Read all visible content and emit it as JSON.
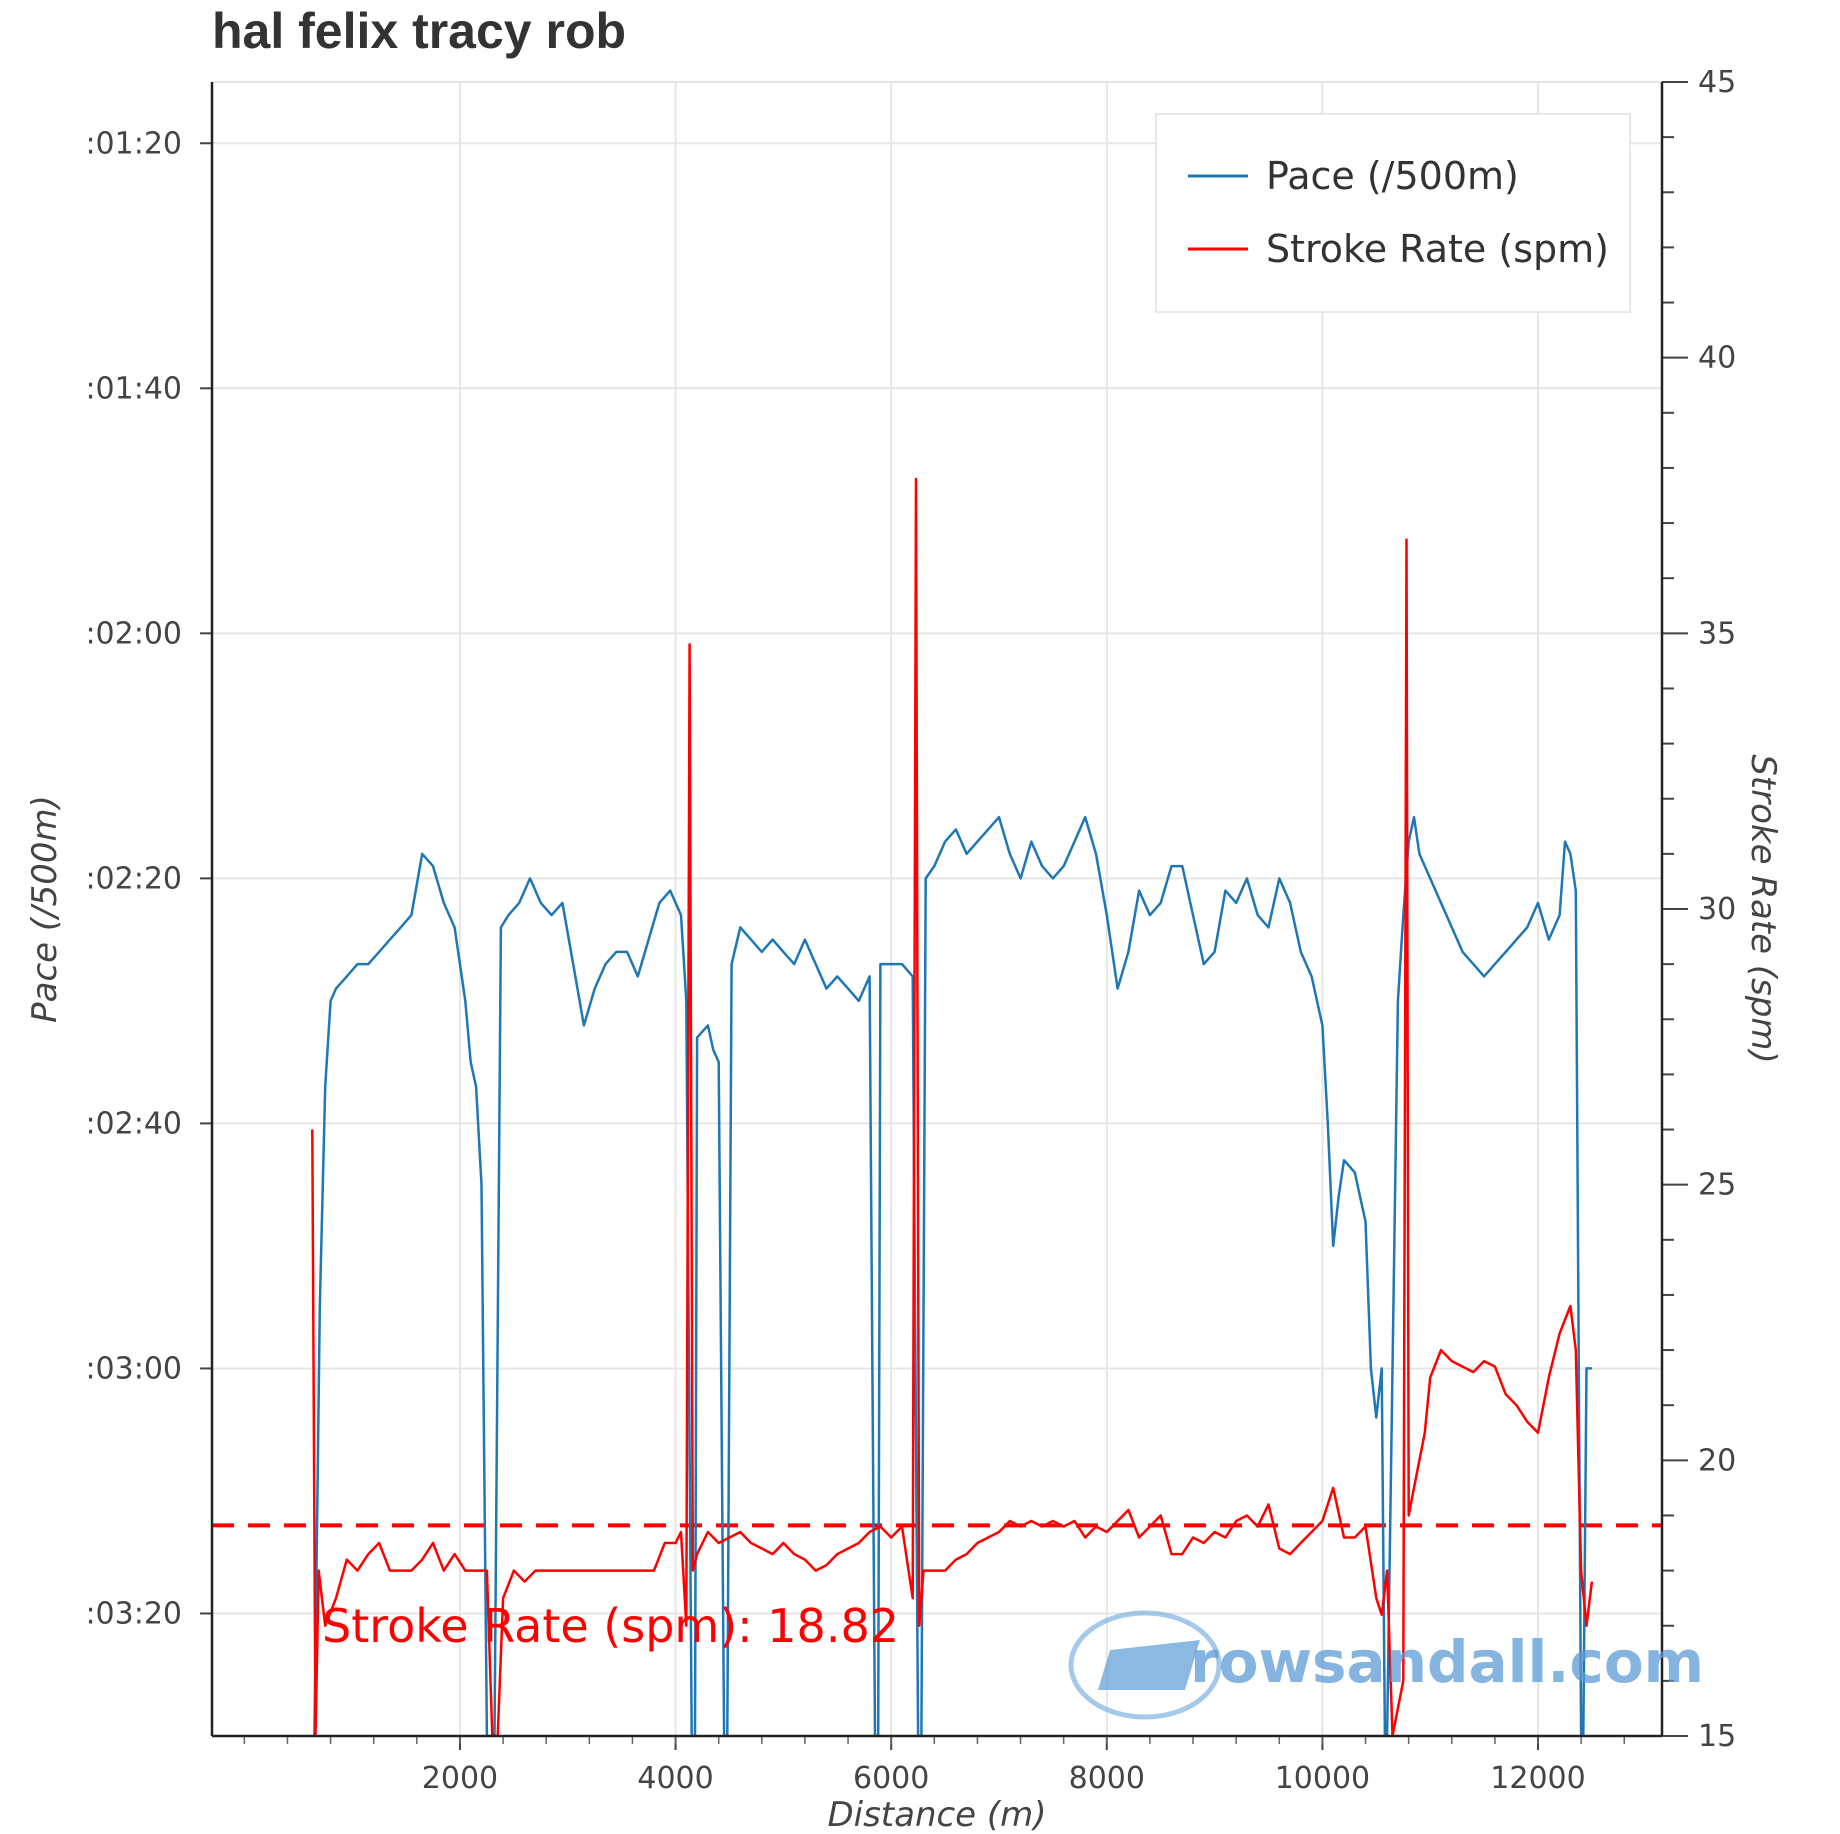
{
  "chart_data": {
    "type": "line",
    "title": "hal felix tracy rob",
    "xlabel": "Distance (m)",
    "ylabel": "Pace (/500m)",
    "ylabel_right": "Stroke Rate (spm)",
    "xlim": [
      -300,
      13150
    ],
    "x_ticks": [
      2000,
      4000,
      6000,
      8000,
      10000,
      12000
    ],
    "y_left_ticks_sec": [
      80,
      100,
      120,
      140,
      160,
      180,
      200
    ],
    "y_left_tick_labels": [
      ":01:20",
      ":01:40",
      ":02:00",
      ":02:20",
      ":02:40",
      ":03:00",
      ":03:20"
    ],
    "y_left_range_sec": [
      75,
      210
    ],
    "y_left_inverted": true,
    "y_right_ticks": [
      15,
      20,
      25,
      30,
      35,
      40,
      45
    ],
    "y_right_range": [
      15,
      45
    ],
    "grid": true,
    "legend_position": "top-right",
    "series": [
      {
        "name": "Pace (/500m)",
        "color": "#1f77b4",
        "axis": "left",
        "unit": "seconds per 500m",
        "points": [
          [
            650,
            210
          ],
          [
            700,
            175
          ],
          [
            750,
            157
          ],
          [
            800,
            150
          ],
          [
            850,
            149
          ],
          [
            950,
            148
          ],
          [
            1050,
            147
          ],
          [
            1150,
            147
          ],
          [
            1250,
            146
          ],
          [
            1350,
            145
          ],
          [
            1450,
            144
          ],
          [
            1550,
            143
          ],
          [
            1650,
            138
          ],
          [
            1750,
            139
          ],
          [
            1850,
            142
          ],
          [
            1950,
            144
          ],
          [
            2050,
            150
          ],
          [
            2100,
            155
          ],
          [
            2150,
            157
          ],
          [
            2200,
            165
          ],
          [
            2250,
            210
          ],
          [
            2320,
            210
          ],
          [
            2380,
            144
          ],
          [
            2450,
            143
          ],
          [
            2550,
            142
          ],
          [
            2650,
            140
          ],
          [
            2750,
            142
          ],
          [
            2850,
            143
          ],
          [
            2950,
            142
          ],
          [
            3050,
            147
          ],
          [
            3150,
            152
          ],
          [
            3250,
            149
          ],
          [
            3350,
            147
          ],
          [
            3450,
            146
          ],
          [
            3550,
            146
          ],
          [
            3650,
            148
          ],
          [
            3750,
            145
          ],
          [
            3850,
            142
          ],
          [
            3950,
            141
          ],
          [
            4050,
            143
          ],
          [
            4100,
            150
          ],
          [
            4150,
            210
          ],
          [
            4180,
            210
          ],
          [
            4200,
            153
          ],
          [
            4300,
            152
          ],
          [
            4350,
            154
          ],
          [
            4400,
            155
          ],
          [
            4450,
            210
          ],
          [
            4480,
            210
          ],
          [
            4520,
            147
          ],
          [
            4600,
            144
          ],
          [
            4700,
            145
          ],
          [
            4800,
            146
          ],
          [
            4900,
            145
          ],
          [
            5000,
            146
          ],
          [
            5100,
            147
          ],
          [
            5200,
            145
          ],
          [
            5300,
            147
          ],
          [
            5400,
            149
          ],
          [
            5500,
            148
          ],
          [
            5600,
            149
          ],
          [
            5700,
            150
          ],
          [
            5800,
            148
          ],
          [
            5850,
            210
          ],
          [
            5880,
            210
          ],
          [
            5900,
            147
          ],
          [
            6000,
            147
          ],
          [
            6100,
            147
          ],
          [
            6200,
            148
          ],
          [
            6250,
            210
          ],
          [
            6280,
            210
          ],
          [
            6320,
            140
          ],
          [
            6400,
            139
          ],
          [
            6500,
            137
          ],
          [
            6600,
            136
          ],
          [
            6700,
            138
          ],
          [
            6800,
            137
          ],
          [
            6900,
            136
          ],
          [
            7000,
            135
          ],
          [
            7100,
            138
          ],
          [
            7200,
            140
          ],
          [
            7300,
            137
          ],
          [
            7400,
            139
          ],
          [
            7500,
            140
          ],
          [
            7600,
            139
          ],
          [
            7700,
            137
          ],
          [
            7800,
            135
          ],
          [
            7900,
            138
          ],
          [
            8000,
            143
          ],
          [
            8100,
            149
          ],
          [
            8200,
            146
          ],
          [
            8300,
            141
          ],
          [
            8400,
            143
          ],
          [
            8500,
            142
          ],
          [
            8600,
            139
          ],
          [
            8700,
            139
          ],
          [
            8800,
            143
          ],
          [
            8900,
            147
          ],
          [
            9000,
            146
          ],
          [
            9100,
            141
          ],
          [
            9200,
            142
          ],
          [
            9300,
            140
          ],
          [
            9400,
            143
          ],
          [
            9500,
            144
          ],
          [
            9600,
            140
          ],
          [
            9700,
            142
          ],
          [
            9800,
            146
          ],
          [
            9900,
            148
          ],
          [
            10000,
            152
          ],
          [
            10050,
            160
          ],
          [
            10100,
            170
          ],
          [
            10150,
            166
          ],
          [
            10200,
            163
          ],
          [
            10300,
            164
          ],
          [
            10350,
            166
          ],
          [
            10400,
            168
          ],
          [
            10450,
            180
          ],
          [
            10500,
            184
          ],
          [
            10550,
            180
          ],
          [
            10580,
            210
          ],
          [
            10600,
            210
          ],
          [
            10700,
            150
          ],
          [
            10750,
            143
          ],
          [
            10800,
            137
          ],
          [
            10850,
            135
          ],
          [
            10900,
            138
          ],
          [
            11000,
            140
          ],
          [
            11100,
            142
          ],
          [
            11200,
            144
          ],
          [
            11300,
            146
          ],
          [
            11400,
            147
          ],
          [
            11500,
            148
          ],
          [
            11600,
            147
          ],
          [
            11700,
            146
          ],
          [
            11800,
            145
          ],
          [
            11900,
            144
          ],
          [
            12000,
            142
          ],
          [
            12100,
            145
          ],
          [
            12200,
            143
          ],
          [
            12250,
            137
          ],
          [
            12300,
            138
          ],
          [
            12350,
            141
          ],
          [
            12400,
            210
          ],
          [
            12420,
            210
          ],
          [
            12450,
            180
          ],
          [
            12500,
            180
          ]
        ]
      },
      {
        "name": "Stroke Rate (spm)",
        "color": "#ff0000",
        "axis": "right",
        "unit": "strokes per minute",
        "points": [
          [
            630,
            26
          ],
          [
            660,
            15
          ],
          [
            690,
            18
          ],
          [
            750,
            17
          ],
          [
            850,
            17.5
          ],
          [
            950,
            18.2
          ],
          [
            1050,
            18
          ],
          [
            1150,
            18.3
          ],
          [
            1250,
            18.5
          ],
          [
            1350,
            18
          ],
          [
            1450,
            18
          ],
          [
            1550,
            18
          ],
          [
            1650,
            18.2
          ],
          [
            1750,
            18.5
          ],
          [
            1850,
            18
          ],
          [
            1950,
            18.3
          ],
          [
            2050,
            18
          ],
          [
            2150,
            18
          ],
          [
            2250,
            18
          ],
          [
            2300,
            15
          ],
          [
            2350,
            15
          ],
          [
            2400,
            17.5
          ],
          [
            2500,
            18
          ],
          [
            2600,
            17.8
          ],
          [
            2700,
            18
          ],
          [
            2800,
            18
          ],
          [
            2900,
            18
          ],
          [
            3000,
            18
          ],
          [
            3100,
            18
          ],
          [
            3200,
            18
          ],
          [
            3300,
            18
          ],
          [
            3400,
            18
          ],
          [
            3500,
            18
          ],
          [
            3600,
            18
          ],
          [
            3700,
            18
          ],
          [
            3800,
            18
          ],
          [
            3900,
            18.5
          ],
          [
            4000,
            18.5
          ],
          [
            4050,
            18.7
          ],
          [
            4100,
            17
          ],
          [
            4130,
            34.8
          ],
          [
            4160,
            18
          ],
          [
            4200,
            18.3
          ],
          [
            4300,
            18.7
          ],
          [
            4400,
            18.5
          ],
          [
            4500,
            18.6
          ],
          [
            4600,
            18.7
          ],
          [
            4700,
            18.5
          ],
          [
            4800,
            18.4
          ],
          [
            4900,
            18.3
          ],
          [
            5000,
            18.5
          ],
          [
            5100,
            18.3
          ],
          [
            5200,
            18.2
          ],
          [
            5300,
            18
          ],
          [
            5400,
            18.1
          ],
          [
            5500,
            18.3
          ],
          [
            5600,
            18.4
          ],
          [
            5700,
            18.5
          ],
          [
            5800,
            18.7
          ],
          [
            5900,
            18.8
          ],
          [
            6000,
            18.6
          ],
          [
            6100,
            18.8
          ],
          [
            6200,
            17.5
          ],
          [
            6230,
            37.8
          ],
          [
            6260,
            17
          ],
          [
            6300,
            18
          ],
          [
            6400,
            18
          ],
          [
            6500,
            18
          ],
          [
            6600,
            18.2
          ],
          [
            6700,
            18.3
          ],
          [
            6800,
            18.5
          ],
          [
            6900,
            18.6
          ],
          [
            7000,
            18.7
          ],
          [
            7100,
            18.9
          ],
          [
            7200,
            18.8
          ],
          [
            7300,
            18.9
          ],
          [
            7400,
            18.8
          ],
          [
            7500,
            18.9
          ],
          [
            7600,
            18.8
          ],
          [
            7700,
            18.9
          ],
          [
            7800,
            18.6
          ],
          [
            7900,
            18.8
          ],
          [
            8000,
            18.7
          ],
          [
            8100,
            18.9
          ],
          [
            8200,
            19.1
          ],
          [
            8300,
            18.6
          ],
          [
            8400,
            18.8
          ],
          [
            8500,
            19
          ],
          [
            8600,
            18.3
          ],
          [
            8700,
            18.3
          ],
          [
            8800,
            18.6
          ],
          [
            8900,
            18.5
          ],
          [
            9000,
            18.7
          ],
          [
            9100,
            18.6
          ],
          [
            9200,
            18.9
          ],
          [
            9300,
            19
          ],
          [
            9400,
            18.8
          ],
          [
            9500,
            19.2
          ],
          [
            9600,
            18.4
          ],
          [
            9700,
            18.3
          ],
          [
            9800,
            18.5
          ],
          [
            9900,
            18.7
          ],
          [
            10000,
            18.9
          ],
          [
            10100,
            19.5
          ],
          [
            10200,
            18.6
          ],
          [
            10300,
            18.6
          ],
          [
            10400,
            18.8
          ],
          [
            10500,
            17.5
          ],
          [
            10550,
            17.2
          ],
          [
            10600,
            18
          ],
          [
            10650,
            15
          ],
          [
            10700,
            15.5
          ],
          [
            10750,
            16
          ],
          [
            10780,
            36.7
          ],
          [
            10800,
            19
          ],
          [
            10850,
            19.5
          ],
          [
            10950,
            20.5
          ],
          [
            11000,
            21.5
          ],
          [
            11100,
            22
          ],
          [
            11200,
            21.8
          ],
          [
            11300,
            21.7
          ],
          [
            11400,
            21.6
          ],
          [
            11500,
            21.8
          ],
          [
            11600,
            21.7
          ],
          [
            11700,
            21.2
          ],
          [
            11800,
            21
          ],
          [
            11900,
            20.7
          ],
          [
            12000,
            20.5
          ],
          [
            12100,
            21.5
          ],
          [
            12200,
            22.3
          ],
          [
            12300,
            22.8
          ],
          [
            12350,
            22
          ],
          [
            12400,
            18
          ],
          [
            12450,
            17
          ],
          [
            12500,
            17.8
          ]
        ]
      }
    ],
    "reference_line": {
      "series": "Stroke Rate (spm)",
      "axis": "right",
      "value": 18.82,
      "style": "dashed",
      "label": "Stroke Rate (spm): 18.82"
    }
  },
  "legend": {
    "pace_label": "Pace (/500m)",
    "spm_label": "Stroke Rate (spm)"
  },
  "watermark": {
    "text": "rowsandall.com"
  }
}
